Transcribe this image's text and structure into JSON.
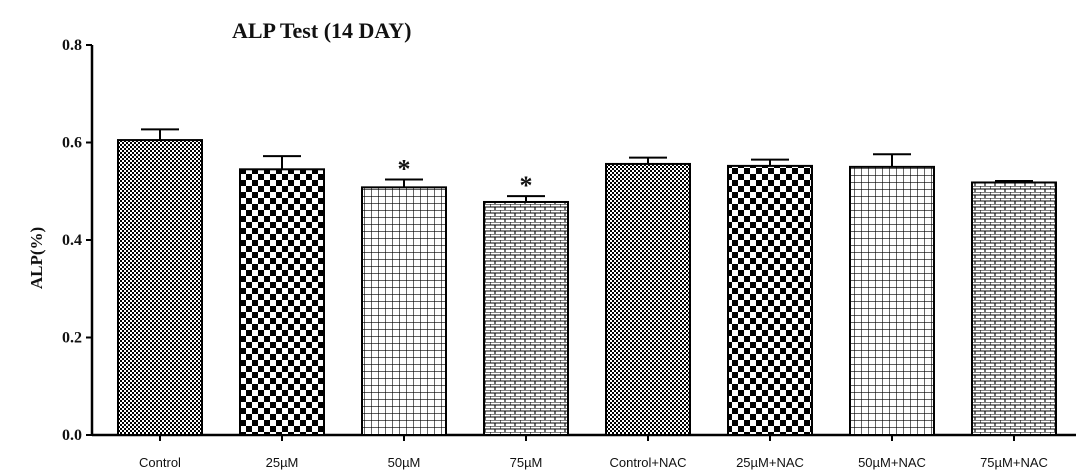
{
  "chart_data": {
    "type": "bar",
    "title": "ALP Test (14 DAY)",
    "xlabel": "",
    "ylabel": "ALP(%)",
    "ylim": [
      0,
      0.8
    ],
    "yticks": [
      "0.0",
      "0.2",
      "0.4",
      "0.6",
      "0.8"
    ],
    "categories": [
      "Control",
      "25µM",
      "50µM",
      "75µM",
      "Control+NAC",
      "25µM+NAC",
      "50µM+NAC",
      "75µM+NAC"
    ],
    "values": [
      0.605,
      0.545,
      0.508,
      0.478,
      0.556,
      0.552,
      0.55,
      0.518
    ],
    "errors": [
      0.022,
      0.027,
      0.016,
      0.012,
      0.013,
      0.013,
      0.026,
      0.003
    ],
    "annotations": [
      "",
      "",
      "*",
      "*",
      "",
      "",
      "",
      ""
    ],
    "patterns": [
      "fine-check",
      "coarse-check",
      "grid",
      "brick",
      "fine-check",
      "coarse-check",
      "grid",
      "brick"
    ],
    "bar_color": "#000000",
    "grid": false,
    "legend": "none"
  }
}
